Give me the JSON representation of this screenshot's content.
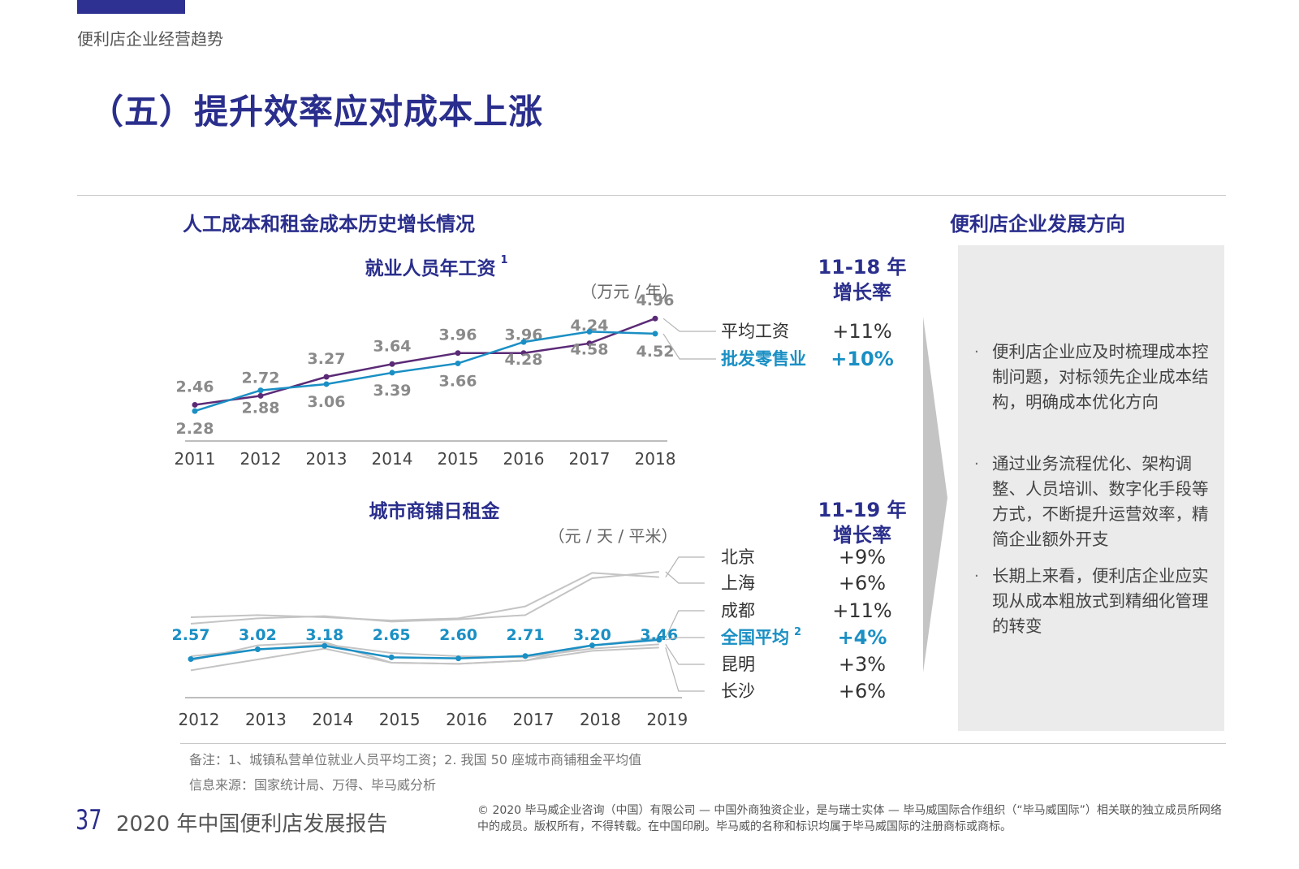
{
  "section_label": "便利店企业经营趋势",
  "page_title": "（五）提升效率应对成本上涨",
  "left_title": "人工成本和租金成本历史增长情况",
  "right_title": "便利店企业发展方向",
  "colors": {
    "navy": "#2a2e8c",
    "blue": "#1a8fc4",
    "purple": "#5b2a76",
    "gray": "#c4c4c4",
    "text": "#444444"
  },
  "chart_data": [
    {
      "type": "line",
      "title": "就业人员年工资",
      "title_sup": "1",
      "unit": "（万元 / 年）",
      "x": [
        "2011",
        "2012",
        "2013",
        "2014",
        "2015",
        "2016",
        "2017",
        "2018"
      ],
      "ylim": [
        2.0,
        5.2
      ],
      "series": [
        {
          "name": "平均工资",
          "key": "avg",
          "values": [
            2.46,
            2.72,
            3.27,
            3.64,
            3.96,
            3.96,
            4.24,
            4.96
          ],
          "labels": [
            "2.46",
            "2.72",
            "3.27",
            "3.64",
            "3.96",
            "3.96",
            "4.24",
            "4.96"
          ],
          "color": "#5b2a76",
          "label_color": "#8a8a8a",
          "label_pos": "above"
        },
        {
          "name": "批发零售业",
          "key": "retail",
          "values": [
            2.28,
            2.88,
            3.06,
            3.39,
            3.66,
            4.28,
            4.58,
            4.52
          ],
          "labels": [
            "2.28",
            "2.88",
            "3.06",
            "3.39",
            "3.66",
            "4.28",
            "4.58",
            "4.52"
          ],
          "color": "#1a8fc4",
          "label_color": "#8a8a8a",
          "label_pos": "below"
        }
      ],
      "growth_header": [
        "11-18 年",
        "增长率"
      ],
      "growth": [
        {
          "name": "平均工资",
          "rate": "+11%",
          "highlight": false
        },
        {
          "name": "批发零售业",
          "rate": "+10%",
          "highlight": true
        }
      ]
    },
    {
      "type": "line",
      "title": "城市商铺日租金",
      "unit": "（元 / 天 / 平米）",
      "x": [
        "2012",
        "2013",
        "2014",
        "2015",
        "2016",
        "2017",
        "2018",
        "2019"
      ],
      "ylim": [
        1.5,
        7.5
      ],
      "series": [
        {
          "name": "北京",
          "key": "beijing",
          "values": [
            4.5,
            4.6,
            4.5,
            4.35,
            4.45,
            5.0,
            6.55,
            6.35
          ],
          "color": "#c4c4c4"
        },
        {
          "name": "上海",
          "key": "shanghai",
          "values": [
            4.2,
            4.45,
            4.55,
            4.3,
            4.4,
            4.6,
            6.3,
            6.6
          ],
          "color": "#c4c4c4"
        },
        {
          "name": "成都",
          "key": "chengdu",
          "values": [
            2.5,
            3.2,
            3.35,
            2.4,
            2.35,
            2.5,
            3.2,
            3.55
          ],
          "color": "#c4c4c4"
        },
        {
          "name": "全国平均",
          "key": "national",
          "values": [
            2.57,
            3.02,
            3.18,
            2.65,
            2.6,
            2.71,
            3.2,
            3.46
          ],
          "labels": [
            "2.57",
            "3.02",
            "3.18",
            "2.65",
            "2.60",
            "2.71",
            "3.20",
            "3.46"
          ],
          "color": "#1a8fc4",
          "label_color": "#1a8fc4"
        },
        {
          "name": "昆明",
          "key": "kunming",
          "values": [
            2.7,
            3.0,
            3.25,
            2.85,
            2.7,
            2.65,
            3.05,
            3.25
          ],
          "color": "#c4c4c4"
        },
        {
          "name": "长沙",
          "key": "changsha",
          "values": [
            2.05,
            2.55,
            3.05,
            2.4,
            2.35,
            2.5,
            2.95,
            3.1
          ],
          "color": "#c4c4c4"
        }
      ],
      "name_sup": "2",
      "growth_header": [
        "11-19 年",
        "增长率"
      ],
      "growth": [
        {
          "name": "北京",
          "rate": "+9%",
          "highlight": false
        },
        {
          "name": "上海",
          "rate": "+6%",
          "highlight": false
        },
        {
          "name": "成都",
          "rate": "+11%",
          "highlight": false
        },
        {
          "name": "全国平均",
          "rate": "+4%",
          "highlight": true
        },
        {
          "name": "昆明",
          "rate": "+3%",
          "highlight": false
        },
        {
          "name": "长沙",
          "rate": "+6%",
          "highlight": false
        }
      ]
    }
  ],
  "directions": [
    "便利店企业应及时梳理成本控制问题，对标领先企业成本结构，明确成本优化方向",
    "通过业务流程优化、架构调整、人员培训、数字化手段等方式，不断提升运营效率，精简企业额外开支",
    "长期上来看，便利店企业应实现从成本粗放式到精细化管理的转变"
  ],
  "bullet_char": "·",
  "footnote_1": "备注：1、城镇私营单位就业人员平均工资；2. 我国 50 座城市商铺租金平均值",
  "footnote_2": "信息来源：国家统计局、万得、毕马威分析",
  "page_number": "37",
  "report_title": "2020 年中国便利店发展报告",
  "copyright": "© 2020 毕马威企业咨询（中国）有限公司 — 中国外商独资企业，是与瑞士实体 — 毕马威国际合作组织（“毕马威国际”）相关联的独立成员所网络中的成员。版权所有，不得转载。在中国印刷。毕马威的名称和标识均属于毕马威国际的注册商标或商标。"
}
